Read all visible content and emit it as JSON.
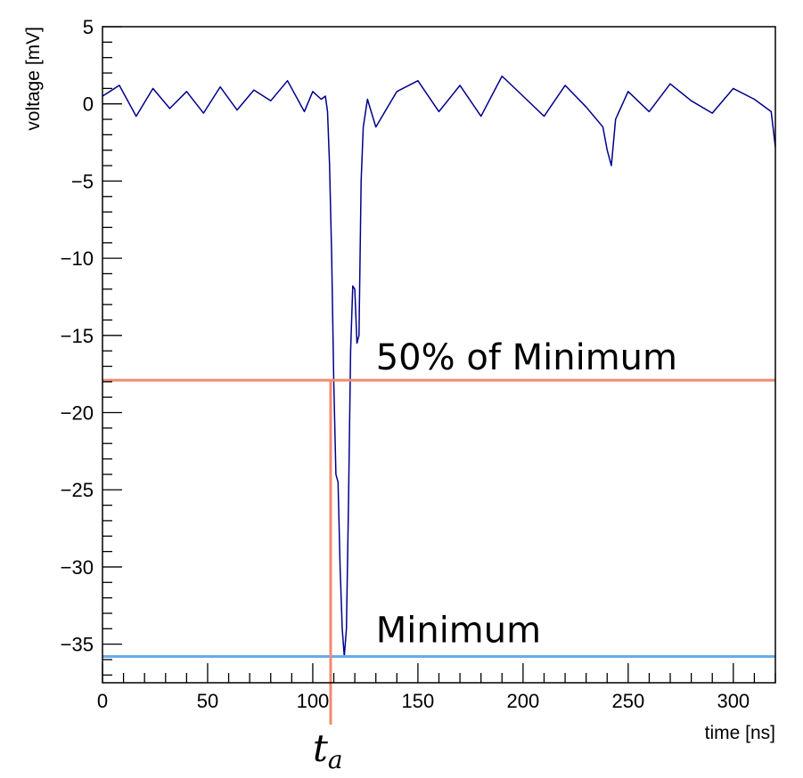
{
  "chart_data": {
    "type": "line",
    "title": "",
    "xlabel": "time [ns]",
    "ylabel": "voltage [mV]",
    "xlim": [
      0,
      320
    ],
    "ylim": [
      -37.5,
      5
    ],
    "x_major_ticks": [
      0,
      50,
      100,
      150,
      200,
      250,
      300
    ],
    "x_tick_labels": [
      "0",
      "50",
      "100",
      "150",
      "200",
      "250",
      "300"
    ],
    "y_major_ticks": [
      5,
      0,
      -5,
      -10,
      -15,
      -20,
      -25,
      -30,
      -35
    ],
    "y_tick_labels": [
      "5",
      "0",
      "−5",
      "−10",
      "−15",
      "−20",
      "−25",
      "−30",
      "−35"
    ],
    "grid": false,
    "series": [
      {
        "color": "#00008b",
        "x": [
          0,
          8,
          16,
          24,
          32,
          40,
          48,
          56,
          64,
          72,
          80,
          88,
          96,
          100,
          104,
          106,
          107,
          108,
          109,
          110,
          111,
          112,
          113,
          114,
          115,
          116,
          117,
          118,
          119,
          120,
          121,
          122,
          123,
          124,
          126,
          130,
          140,
          150,
          160,
          170,
          180,
          190,
          200,
          210,
          220,
          230,
          238,
          240,
          242,
          244,
          250,
          260,
          270,
          280,
          290,
          300,
          310,
          318,
          320
        ],
        "y": [
          0.5,
          1.2,
          -0.8,
          1.0,
          -0.3,
          0.8,
          -0.6,
          1.1,
          -0.4,
          0.9,
          0.2,
          1.5,
          -0.5,
          0.8,
          0.3,
          0.5,
          -0.5,
          -4.0,
          -10.0,
          -18.0,
          -24.0,
          -24.5,
          -30.0,
          -34.0,
          -35.8,
          -34.0,
          -26.0,
          -16.0,
          -11.8,
          -12.0,
          -15.5,
          -15.0,
          -5.0,
          -1.5,
          0.3,
          -1.5,
          0.8,
          1.5,
          -0.5,
          1.2,
          -0.8,
          1.8,
          0.5,
          -0.8,
          1.2,
          -0.2,
          -1.5,
          -3.0,
          -4.0,
          -1.0,
          0.8,
          -0.5,
          1.3,
          0.2,
          -0.6,
          1.0,
          0.3,
          -0.5,
          -2.8
        ]
      }
    ],
    "annotations": [
      {
        "type": "hline",
        "y": -17.9,
        "color": "#f08b70",
        "label": "50% of Minimum"
      },
      {
        "type": "hline",
        "y": -35.8,
        "color": "#6aaae8",
        "label": "Minimum"
      },
      {
        "type": "vline",
        "x": 108.5,
        "color": "#f08b70",
        "label": "t",
        "label_sub": "a"
      }
    ]
  }
}
